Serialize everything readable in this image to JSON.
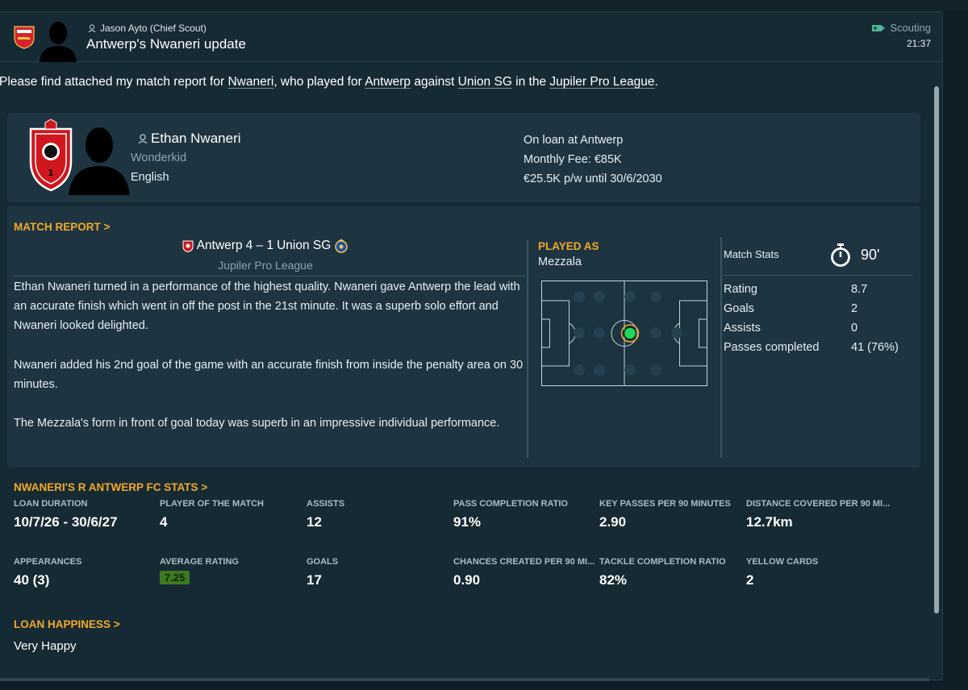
{
  "header": {
    "sender": "Jason Ayto  (Chief Scout)",
    "subject": "Antwerp's Nwaneri update",
    "category": "Scouting",
    "time": "21:37"
  },
  "intro": {
    "p1": "Please find attached my match report for ",
    "player": "Nwaneri",
    "p2": ", who played for ",
    "team": "Antwerp",
    "p3": " against ",
    "opponent": "Union SG",
    "p4": " in the ",
    "league": "Jupiler Pro League",
    "p5": "."
  },
  "player": {
    "name": "Ethan Nwaneri",
    "tag": "Wonderkid",
    "nationality": "English",
    "loan_status": "On loan at Antwerp",
    "monthly_fee": "Monthly Fee: €85K",
    "wage": "€25.5K p/w until 30/6/2030"
  },
  "match_report": {
    "title": "MATCH REPORT",
    "home": "Antwerp",
    "score": "4 – 1",
    "away": "Union SG",
    "competition": "Jupiler Pro League",
    "paragraphs": [
      "Ethan Nwaneri turned in a performance of the highest quality. Nwaneri gave Antwerp the lead with an accurate finish which went in off the post in the 21st minute. It was a superb solo effort and Nwaneri looked delighted.",
      "Nwaneri added his 2nd goal of the game with an accurate finish from inside the penalty area on 30 minutes.",
      "The Mezzala's form in front of goal today was superb in an impressive individual performance."
    ]
  },
  "played_as": {
    "title": "PLAYED AS",
    "role": "Mezzala"
  },
  "match_stats": {
    "header": "Match Stats",
    "minutes": "90'",
    "rows": [
      {
        "label": "Rating",
        "value": "8.7"
      },
      {
        "label": "Goals",
        "value": "2"
      },
      {
        "label": "Assists",
        "value": "0"
      },
      {
        "label": "Passes completed",
        "value": "41 (76%)"
      }
    ]
  },
  "loan_stats": {
    "title": "NWANERI'S R ANTWERP FC STATS",
    "row1": [
      {
        "label": "LOAN DURATION",
        "value": "10/7/26 - 30/6/27"
      },
      {
        "label": "PLAYER OF THE MATCH",
        "value": "4"
      },
      {
        "label": "ASSISTS",
        "value": "12"
      },
      {
        "label": "PASS COMPLETION RATIO",
        "value": "91%"
      },
      {
        "label": "KEY PASSES PER 90 MINUTES",
        "value": "2.90"
      },
      {
        "label": "DISTANCE COVERED PER 90 MI...",
        "value": "12.7km"
      }
    ],
    "row2": [
      {
        "label": "APPEARANCES",
        "value": "40 (3)"
      },
      {
        "label": "AVERAGE RATING",
        "value": "7.25"
      },
      {
        "label": "GOALS",
        "value": "17"
      },
      {
        "label": "CHANCES CREATED PER 90 MI...",
        "value": "0.90"
      },
      {
        "label": "TACKLE COMPLETION RATIO",
        "value": "82%"
      },
      {
        "label": "YELLOW CARDS",
        "value": "2"
      }
    ]
  },
  "loan_happiness": {
    "title": "LOAN HAPPINESS",
    "value": "Very Happy"
  },
  "colors": {
    "accent": "#f0a92a",
    "panel": "#1e3441",
    "background": "#162a34",
    "rating_badge": "#3d7a1f",
    "pitch_player_dot": "#1fd85a"
  }
}
